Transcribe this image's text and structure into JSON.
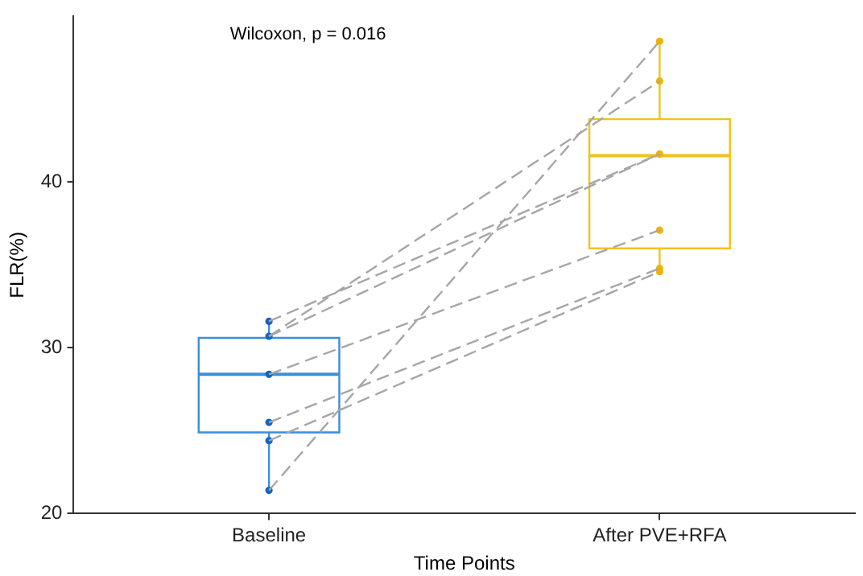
{
  "chart_data": {
    "type": "box",
    "xlabel": "Time Points",
    "ylabel": "FLR(%)",
    "annotations": [
      "Wilcoxon, p = 0.016"
    ],
    "categories": [
      "Baseline",
      "After PVE+RFA"
    ],
    "ylim": [
      20,
      50
    ],
    "yticks": [
      20,
      30,
      40
    ],
    "grid": false,
    "legend": false,
    "series": [
      {
        "type": "box",
        "colors": [
          "#3a8fd9",
          "#f2c21a"
        ],
        "boxes": [
          {
            "low": 21.4,
            "q1": 24.9,
            "median": 28.4,
            "q3": 30.6,
            "high": 31.6
          },
          {
            "low": 34.6,
            "q1": 36.0,
            "median": 41.6,
            "q3": 43.8,
            "high": 48.5
          }
        ]
      },
      {
        "type": "line",
        "color": "#a6a6a6",
        "line_style": "dashed",
        "marker": "none",
        "values": [
          31.6,
          41.7
        ]
      },
      {
        "type": "line",
        "color": "#a6a6a6",
        "line_style": "dashed",
        "marker": "none",
        "values": [
          30.7,
          46.1
        ]
      },
      {
        "type": "line",
        "color": "#a6a6a6",
        "line_style": "dashed",
        "marker": "none",
        "values": [
          30.7,
          41.7
        ]
      },
      {
        "type": "line",
        "color": "#a6a6a6",
        "line_style": "dashed",
        "marker": "none",
        "values": [
          28.4,
          37.1
        ]
      },
      {
        "type": "line",
        "color": "#a6a6a6",
        "line_style": "dashed",
        "marker": "none",
        "values": [
          25.5,
          34.8
        ]
      },
      {
        "type": "line",
        "color": "#a6a6a6",
        "line_style": "dashed",
        "marker": "none",
        "values": [
          24.4,
          34.6
        ]
      },
      {
        "type": "line",
        "color": "#a6a6a6",
        "line_style": "dashed",
        "marker": "none",
        "values": [
          21.4,
          48.5
        ]
      },
      {
        "type": "scatter",
        "marker": "circle",
        "x": [
          "Baseline",
          "Baseline",
          "Baseline",
          "Baseline",
          "Baseline",
          "Baseline",
          "After PVE+RFA",
          "After PVE+RFA",
          "After PVE+RFA",
          "After PVE+RFA",
          "After PVE+RFA",
          "After PVE+RFA"
        ],
        "values": [
          31.6,
          30.7,
          28.4,
          25.5,
          24.4,
          21.4,
          41.7,
          46.1,
          37.1,
          34.8,
          34.6,
          48.5
        ],
        "colors": [
          "#1565c0",
          "#1565c0",
          "#1565c0",
          "#1565c0",
          "#1565c0",
          "#1565c0",
          "#f0b400",
          "#f0b400",
          "#f0b400",
          "#f0b400",
          "#f0b400",
          "#f0b400"
        ]
      }
    ]
  }
}
